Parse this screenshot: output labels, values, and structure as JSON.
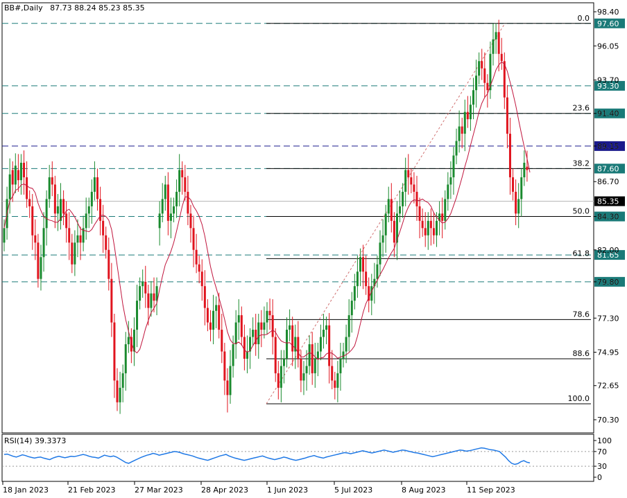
{
  "header": {
    "symbol": "BB#,Daily",
    "ohlc": "87.73 88.24 85.23 85.35"
  },
  "rsi": {
    "label": "RSI(14) 39.3373",
    "ticks": [
      "100",
      "70",
      "30",
      "0"
    ]
  },
  "colors": {
    "up": "#1a8a2e",
    "down": "#e0141e",
    "ma": "#c0143c",
    "rsi": "#1e78e6",
    "level_dash": "#1a7a78",
    "fib_line": "#000000",
    "current": "#000000",
    "blue_box": "#1a1a8c"
  },
  "chart_data": {
    "type": "candlestick",
    "y_ticks": [
      "98.40",
      "96.05",
      "93.70",
      "91.40",
      "89.15",
      "86.70",
      "84.30",
      "82.00",
      "79.80",
      "77.30",
      "74.95",
      "72.65",
      "70.30"
    ],
    "x_ticks": [
      "18 Jan 2023",
      "21 Feb 2023",
      "27 Mar 2023",
      "28 Apr 2023",
      "1 Jun 2023",
      "5 Jul 2023",
      "8 Aug 2023",
      "11 Sep 2023"
    ],
    "horizontal_levels": [
      {
        "label": "97.60",
        "value": 97.6,
        "style": "dashed"
      },
      {
        "label": "93.30",
        "value": 93.3,
        "style": "dashed"
      },
      {
        "label": "91.40",
        "value": 91.4,
        "style": "dashed"
      },
      {
        "label": "89.15",
        "value": 89.15,
        "style": "dashed-blue"
      },
      {
        "label": "87.60",
        "value": 87.6,
        "style": "dashed"
      },
      {
        "label": "84.30",
        "value": 84.3,
        "style": "dashed"
      },
      {
        "label": "81.65",
        "value": 81.65,
        "style": "dashed"
      },
      {
        "label": "79.80",
        "value": 79.8,
        "style": "dashed"
      }
    ],
    "current_price": {
      "label": "85.35",
      "value": 85.35
    },
    "fibonacci": [
      {
        "label": "0.0",
        "value": 97.6
      },
      {
        "label": "23.6",
        "value": 91.4
      },
      {
        "label": "38.2",
        "value": 87.6
      },
      {
        "label": "50.0",
        "value": 84.3
      },
      {
        "label": "61.8",
        "value": 81.4
      },
      {
        "label": "78.6",
        "value": 77.2
      },
      {
        "label": "88.6",
        "value": 74.5
      },
      {
        "label": "100.0",
        "value": 71.4
      }
    ],
    "candles_close": [
      83.5,
      85.5,
      87.2,
      86.5,
      87.8,
      86.8,
      88.0,
      87.0,
      85.5,
      85.0,
      83.0,
      82.5,
      80.0,
      81.5,
      83.5,
      85.5,
      87.0,
      86.5,
      84.5,
      85.0,
      85.5,
      84.5,
      83.5,
      82.5,
      81.0,
      82.5,
      83.0,
      82.5,
      83.5,
      84.5,
      85.0,
      86.0,
      87.0,
      85.5,
      84.0,
      83.0,
      82.0,
      80.0,
      77.0,
      73.0,
      71.5,
      72.5,
      73.5,
      75.5,
      76.0,
      75.0,
      76.5,
      78.5,
      79.5,
      79.8,
      79.0,
      78.0,
      79.0,
      78.5,
      79.5,
      84.5,
      85.5,
      86.5,
      84.0,
      84.5,
      85.0,
      86.0,
      87.5,
      87.0,
      86.0,
      84.5,
      83.5,
      82.0,
      81.0,
      80.5,
      79.5,
      78.0,
      77.0,
      76.5,
      77.8,
      78.2,
      76.5,
      75.0,
      73.0,
      72.0,
      74.0,
      75.5,
      77.0,
      77.5,
      76.0,
      74.5,
      75.0,
      76.0,
      76.5,
      75.5,
      77.0,
      76.5,
      77.0,
      77.8,
      77.5,
      76.0,
      73.5,
      72.5,
      74.0,
      74.5,
      76.5,
      76.8,
      75.0,
      76.0,
      74.5,
      73.0,
      73.5,
      74.0,
      75.5,
      73.5,
      74.5,
      75.0,
      76.0,
      76.5,
      76.8,
      74.0,
      73.0,
      72.5,
      73.5,
      74.5,
      75.0,
      76.0,
      77.5,
      78.5,
      79.5,
      80.5,
      81.5,
      80.5,
      79.5,
      78.5,
      79.5,
      80.0,
      81.0,
      82.5,
      83.0,
      84.5,
      85.5,
      84.0,
      82.5,
      84.5,
      85.0,
      86.0,
      87.5,
      87.0,
      86.5,
      86.0,
      85.0,
      84.0,
      83.5,
      83.0,
      84.0,
      83.5,
      83.0,
      84.0,
      84.5,
      84.0,
      85.5,
      86.5,
      87.0,
      88.5,
      89.5,
      90.5,
      90.0,
      91.5,
      91.0,
      92.0,
      93.0,
      94.0,
      95.0,
      94.5,
      93.5,
      93.0,
      95.5,
      96.5,
      97.0,
      95.5,
      95.0,
      92.5,
      90.0,
      87.0,
      86.0,
      84.5,
      85.5,
      87.0,
      88.0,
      87.5,
      85.35
    ],
    "candles_open": [
      82.5,
      83.5,
      85.5,
      87.5,
      86.5,
      87.5,
      86.8,
      88.0,
      87.0,
      85.5,
      85.0,
      83.0,
      82.5,
      80.0,
      81.5,
      83.5,
      85.5,
      87.0,
      86.5,
      84.5,
      84.0,
      85.5,
      84.5,
      83.5,
      82.5,
      81.0,
      82.5,
      83.0,
      82.5,
      83.5,
      84.5,
      85.0,
      86.0,
      87.0,
      85.5,
      84.0,
      83.0,
      82.0,
      80.0,
      77.0,
      73.0,
      71.5,
      72.5,
      73.5,
      75.5,
      76.0,
      75.0,
      76.5,
      78.5,
      79.5,
      79.8,
      79.0,
      78.0,
      79.0,
      78.5,
      83.5,
      84.5,
      85.5,
      86.5,
      84.0,
      84.5,
      85.0,
      86.0,
      87.5,
      87.0,
      86.0,
      84.5,
      83.5,
      82.0,
      81.0,
      80.5,
      79.5,
      78.0,
      77.0,
      76.5,
      77.8,
      78.2,
      76.5,
      75.0,
      73.0,
      72.0,
      74.0,
      75.5,
      77.0,
      77.5,
      76.0,
      74.5,
      75.0,
      76.0,
      76.5,
      75.5,
      77.0,
      76.5,
      77.0,
      77.8,
      77.5,
      76.0,
      73.5,
      72.5,
      74.0,
      74.5,
      76.5,
      76.8,
      75.0,
      76.0,
      74.5,
      73.0,
      73.5,
      74.0,
      75.5,
      73.5,
      74.5,
      75.0,
      76.0,
      76.5,
      76.8,
      74.0,
      73.0,
      72.5,
      73.5,
      74.5,
      75.0,
      76.0,
      77.5,
      78.5,
      79.5,
      80.5,
      81.5,
      80.5,
      79.5,
      78.5,
      79.5,
      80.0,
      81.0,
      82.5,
      83.0,
      84.5,
      85.5,
      84.0,
      82.5,
      84.5,
      85.0,
      86.0,
      87.5,
      87.0,
      86.5,
      86.0,
      85.0,
      84.0,
      83.5,
      83.0,
      84.0,
      83.5,
      83.0,
      84.0,
      84.5,
      84.0,
      85.5,
      86.5,
      87.0,
      88.5,
      89.5,
      90.5,
      90.0,
      91.5,
      91.0,
      92.0,
      93.0,
      94.0,
      95.0,
      94.5,
      93.5,
      93.0,
      95.5,
      96.5,
      97.0,
      95.5,
      95.0,
      92.5,
      90.0,
      87.0,
      86.0,
      84.5,
      85.5,
      87.0,
      87.73
    ],
    "ylim": [
      69.6,
      99.1
    ],
    "rsi_ylim": [
      0,
      100
    ],
    "rsi_levels": [
      70,
      30
    ],
    "rsi_values": [
      62,
      63,
      60,
      57,
      55,
      58,
      61,
      59,
      56,
      54,
      52,
      54,
      55,
      52,
      50,
      48,
      52,
      55,
      57,
      55,
      53,
      55,
      57,
      56,
      58,
      60,
      62,
      60,
      57,
      55,
      54,
      52,
      56,
      60,
      58,
      56,
      58,
      55,
      50,
      45,
      40,
      38,
      42,
      46,
      50,
      54,
      57,
      60,
      62,
      65,
      63,
      60,
      62,
      64,
      66,
      68,
      70,
      69,
      67,
      64,
      62,
      60,
      58,
      55,
      52,
      50,
      48,
      46,
      49,
      52,
      55,
      58,
      60,
      62,
      58,
      55,
      52,
      50,
      48,
      46,
      48,
      50,
      52,
      54,
      56,
      58,
      55,
      52,
      50,
      48,
      50,
      52,
      55,
      53,
      50,
      48,
      46,
      48,
      50,
      52,
      55,
      57,
      59,
      56,
      54,
      52,
      55,
      57,
      59,
      61,
      63,
      65,
      67,
      66,
      64,
      66,
      68,
      70,
      72,
      70,
      68,
      66,
      68,
      70,
      72,
      74,
      72,
      70,
      68,
      70,
      72,
      74,
      73,
      71,
      69,
      67,
      66,
      64,
      62,
      60,
      58,
      56,
      58,
      60,
      62,
      64,
      66,
      68,
      70,
      72,
      74,
      73,
      71,
      72,
      74,
      76,
      78,
      80,
      79,
      77,
      75,
      74,
      72,
      70,
      62,
      55,
      45,
      38,
      35,
      37,
      42,
      45,
      41,
      39
    ]
  }
}
